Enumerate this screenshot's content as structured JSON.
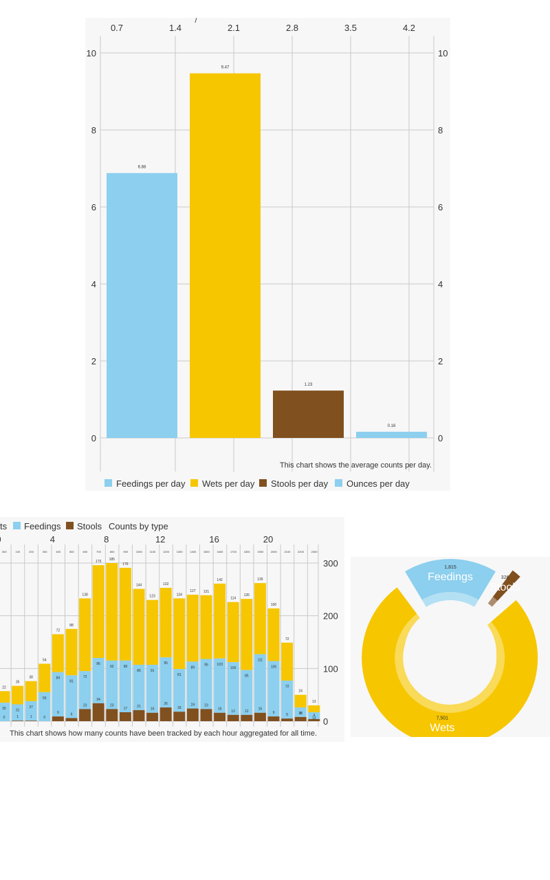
{
  "colors": {
    "feedings": "#8ccfee",
    "wets": "#f6c600",
    "stools": "#80501f",
    "ounces": "#8ccfee",
    "grid": "#c8c8c8",
    "text": "#333333"
  },
  "chart_data": [
    {
      "type": "bar",
      "title": "",
      "top_axis_ticks": [
        "0.7",
        "1.4",
        "2.1",
        "2.8",
        "3.5",
        "4.2"
      ],
      "top_axis_mark": "/",
      "y_ticks": [
        "0",
        "2",
        "4",
        "6",
        "8",
        "10"
      ],
      "ylim": [
        0,
        10
      ],
      "categories": [
        "Feedings per day",
        "Wets per day",
        "Stools per day",
        "Ounces per day"
      ],
      "values": [
        6.88,
        9.47,
        1.23,
        0.16
      ],
      "value_labels": [
        "6.88",
        "9.47",
        "1.23",
        "0.16"
      ],
      "color_keys": [
        "feedings",
        "wets",
        "stools",
        "ounces"
      ],
      "caption": "This chart shows the average counts per day.",
      "legend": [
        "Feedings per day",
        "Wets per day",
        "Stools per day",
        "Ounces per day"
      ]
    },
    {
      "type": "bar",
      "stacked": true,
      "legend": [
        "ts",
        "Feedings",
        "Stools",
        "Counts by type"
      ],
      "top_ticks": [
        "0",
        "4",
        "8",
        "12",
        "16",
        "20"
      ],
      "hour_labels": [
        "000",
        "100",
        "200",
        "300",
        "400",
        "500",
        "600",
        "700",
        "800",
        "900",
        "1000",
        "1100",
        "1200",
        "1300",
        "1400",
        "1500",
        "1600",
        "1700",
        "1800",
        "1900",
        "2000",
        "2100",
        "2200",
        "2300"
      ],
      "y_ticks": [
        "0",
        "100",
        "200",
        "300"
      ],
      "ylim": [
        0,
        300
      ],
      "stools": [
        0,
        1,
        1,
        0,
        9,
        6,
        23,
        34,
        23,
        17,
        21,
        16,
        26,
        18,
        24,
        23,
        16,
        12,
        12,
        16,
        9,
        5,
        8,
        4
      ],
      "feedings": [
        35,
        31,
        37,
        55,
        84,
        81,
        72,
        86,
        92,
        98,
        86,
        91,
        95,
        81,
        89,
        95,
        103,
        100,
        85,
        111,
        105,
        72,
        18,
        13
      ],
      "totals": [
        22,
        35,
        38,
        54,
        72,
        88,
        138,
        176,
        185,
        176,
        144,
        123,
        132,
        134,
        127,
        121,
        142,
        114,
        135,
        135,
        100,
        72,
        24,
        13
      ],
      "caption": "This chart shows how many counts have been tracked by each hour aggregated for all time."
    },
    {
      "type": "pie",
      "donut": true,
      "labels": [
        "Feedings",
        "Stools",
        "Wets"
      ],
      "values": [
        1815,
        326,
        7501
      ],
      "value_labels": [
        "1,815",
        "326",
        "7,501"
      ],
      "color_keys": [
        "feedings",
        "stools",
        "wets"
      ]
    }
  ]
}
